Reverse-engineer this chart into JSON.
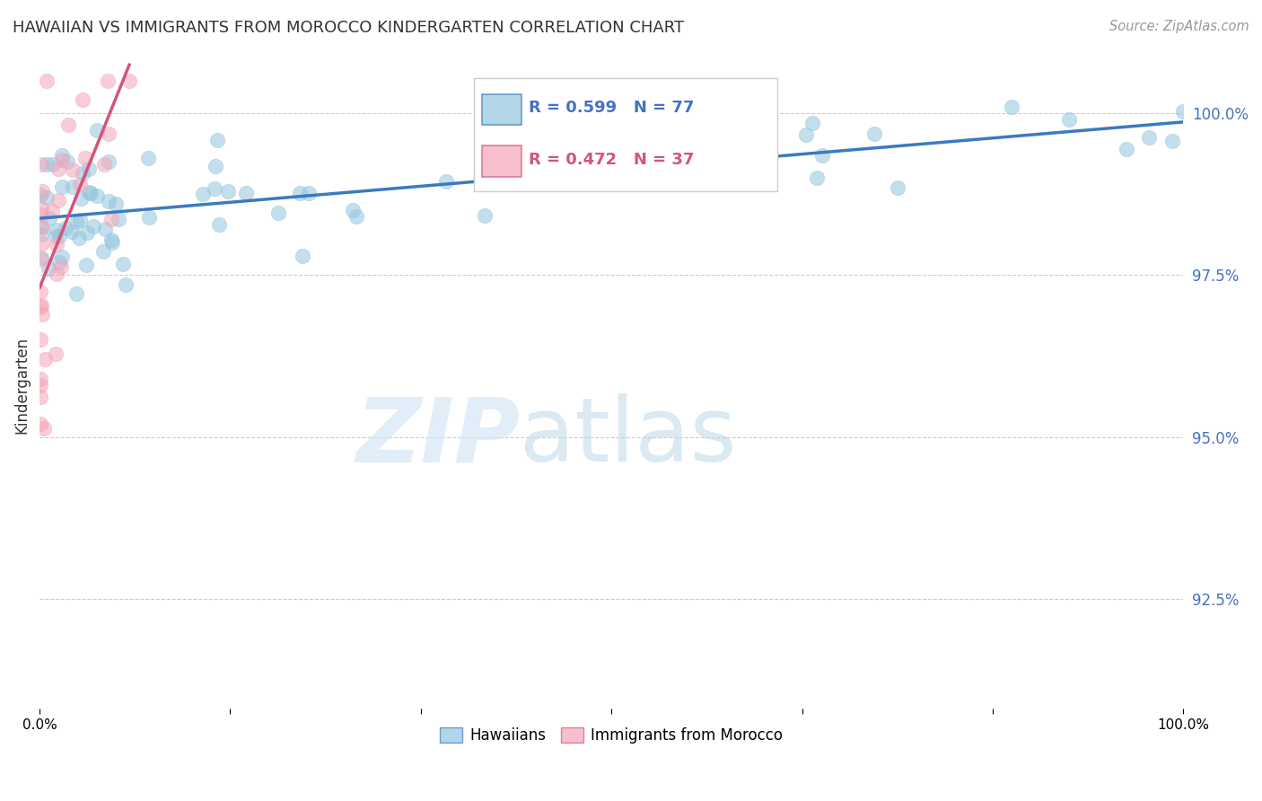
{
  "title": "HAWAIIAN VS IMMIGRANTS FROM MOROCCO KINDERGARTEN CORRELATION CHART",
  "source": "Source: ZipAtlas.com",
  "ylabel": "Kindergarten",
  "ytick_labels": [
    "100.0%",
    "97.5%",
    "95.0%",
    "92.5%"
  ],
  "ytick_values": [
    1.0,
    0.975,
    0.95,
    0.925
  ],
  "xlim": [
    0.0,
    1.0
  ],
  "ylim": [
    0.908,
    1.008
  ],
  "legend_hawaiians": "Hawaiians",
  "legend_morocco": "Immigrants from Morocco",
  "r_hawaiians": 0.599,
  "n_hawaiians": 77,
  "r_morocco": 0.472,
  "n_morocco": 37,
  "hawaiian_color": "#92c5de",
  "morocco_color": "#f4a5b8",
  "hawaiian_line_color": "#3a7bbf",
  "morocco_line_color": "#d4547a",
  "background_color": "#ffffff",
  "watermark_zip": "ZIP",
  "watermark_atlas": "atlas",
  "grid_color": "#cccccc",
  "right_tick_color": "#4472c4",
  "source_color": "#999999",
  "title_color": "#333333"
}
